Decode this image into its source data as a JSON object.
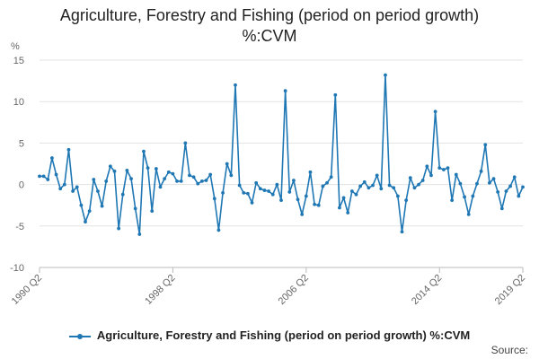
{
  "chart_data": {
    "type": "line",
    "title_lines": [
      "Agriculture, Forestry and Fishing (period on period growth)",
      "%:CVM"
    ],
    "ylabel": "%",
    "ylim": [
      -10,
      15
    ],
    "yticks": [
      15,
      10,
      5,
      0,
      -5,
      -10
    ],
    "grid": true,
    "legend_position": "bottom",
    "x_tick_labels": [
      "1990 Q2",
      "1998 Q2",
      "2006 Q2",
      "2014 Q2",
      "2019 Q2"
    ],
    "x_tick_indices": [
      0,
      32,
      64,
      96,
      116
    ],
    "series": [
      {
        "name": "Agriculture, Forestry and Fishing (period on period growth) %:CVM",
        "color": "#1f77b4",
        "values": [
          1.0,
          1.0,
          0.6,
          3.2,
          1.2,
          -0.5,
          0.0,
          4.2,
          -0.8,
          -0.3,
          -2.5,
          -4.5,
          -3.2,
          0.6,
          -0.8,
          -2.6,
          0.4,
          2.2,
          1.6,
          -5.3,
          -1.2,
          1.7,
          0.7,
          -2.9,
          -6.0,
          4.0,
          2.0,
          -3.2,
          1.9,
          -0.3,
          0.7,
          1.5,
          1.3,
          0.4,
          0.4,
          5.0,
          1.1,
          0.9,
          0.1,
          0.4,
          0.5,
          1.2,
          -1.7,
          -5.5,
          -1.0,
          2.5,
          1.1,
          12.0,
          -0.1,
          -1.0,
          -1.1,
          -2.2,
          0.2,
          -0.5,
          -0.7,
          -0.8,
          -1.2,
          0.0,
          -1.9,
          11.3,
          -0.9,
          0.5,
          -1.8,
          -3.6,
          -1.4,
          1.5,
          -2.4,
          -2.5,
          -0.2,
          0.2,
          0.9,
          10.8,
          -2.8,
          -1.6,
          -3.4,
          -0.8,
          -1.2,
          -0.2,
          0.3,
          -0.4,
          -0.1,
          1.1,
          -0.5,
          13.2,
          -0.1,
          -0.4,
          -1.4,
          -5.7,
          -1.9,
          0.8,
          -0.4,
          0.0,
          0.5,
          2.2,
          1.1,
          8.8,
          2.0,
          1.8,
          2.0,
          -1.9,
          1.2,
          0.1,
          -1.5,
          -3.6,
          -1.4,
          0.1,
          1.6,
          4.8,
          0.2,
          0.7,
          -0.9,
          -2.9,
          -0.8,
          -0.2,
          0.9,
          -1.4,
          -0.3
        ]
      }
    ]
  },
  "legend": {
    "label": "Agriculture, Forestry and Fishing (period on period growth) %:CVM"
  },
  "source_label": "Source:"
}
